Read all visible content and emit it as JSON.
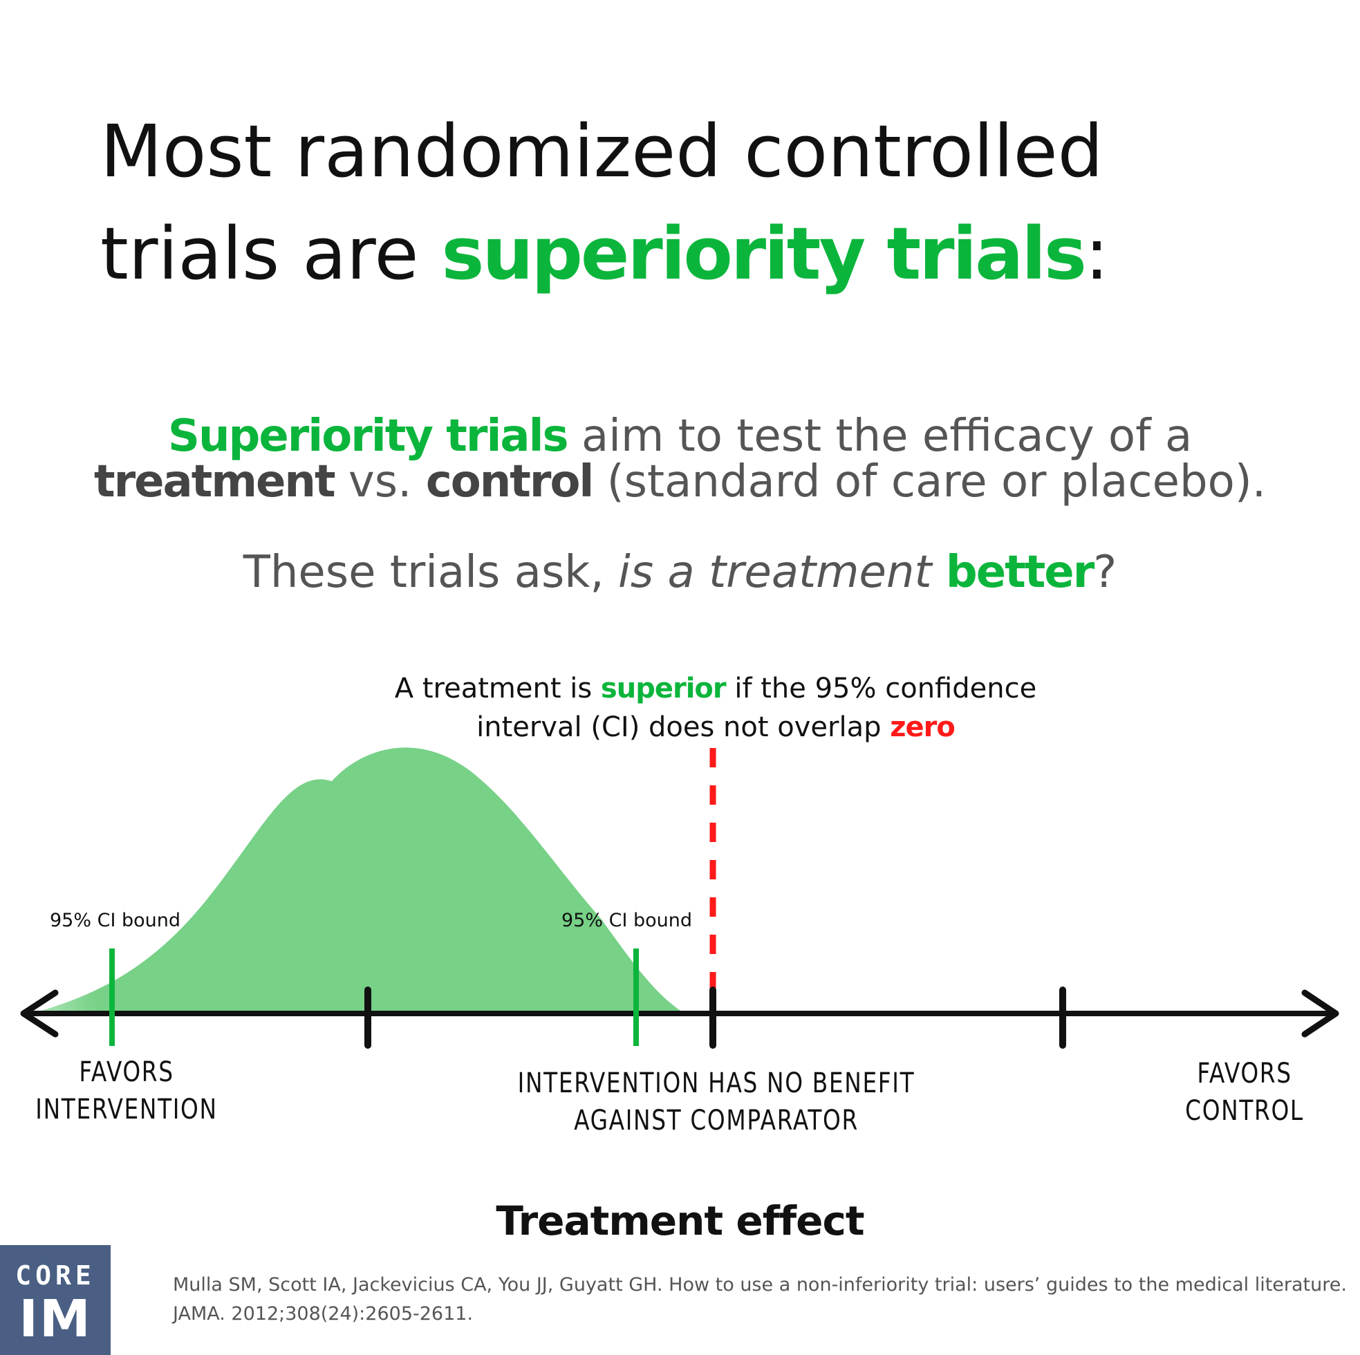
{
  "colors": {
    "accent_green": "#0bb53c",
    "curve_green": "#77d187",
    "zero_red": "#ff1a1a",
    "body_gray": "#555555",
    "dark_gray": "#444444",
    "text_black": "#111111",
    "logo_blue": "#4a5f83"
  },
  "title": {
    "line1": "Most randomized controlled",
    "line2_prefix": "trials are ",
    "line2_highlight": "superiority trials",
    "line2_suffix": ":"
  },
  "intro": {
    "highlight": "Superiority trials",
    "part1": " aim to test the efficacy of a",
    "bold1": "treatment",
    "part2": " vs. ",
    "bold2": "control",
    "part3": " (standard of care or placebo)."
  },
  "question": {
    "prefix": "These trials ask, ",
    "italic": "is a treatment ",
    "highlight": "better",
    "suffix": "?"
  },
  "caption": {
    "part1": "A treatment is ",
    "highlight": "superior",
    "part2": " if the 95% confidence interval (CI) does not overlap ",
    "zero": "zero"
  },
  "diagram": {
    "ci_label_left": "95% CI bound",
    "ci_label_right": "95% CI bound",
    "favors_intervention_line1": "FAVORS",
    "favors_intervention_line2": "INTERVENTION",
    "no_benefit_line1": "INTERVENTION HAS NO BENEFIT",
    "no_benefit_line2": "AGAINST COMPARATOR",
    "favors_control_line1": "FAVORS",
    "favors_control_line2": "CONTROL",
    "x_axis_label": "Treatment effect"
  },
  "logo": {
    "top": "CORE",
    "bottom": "IM"
  },
  "citation": "Mulla SM, Scott IA, Jackevicius CA, You JJ, Guyatt GH. How to use a non-inferiority trial: users’ guides to the medical literature. JAMA. 2012;308(24):2605-2611."
}
